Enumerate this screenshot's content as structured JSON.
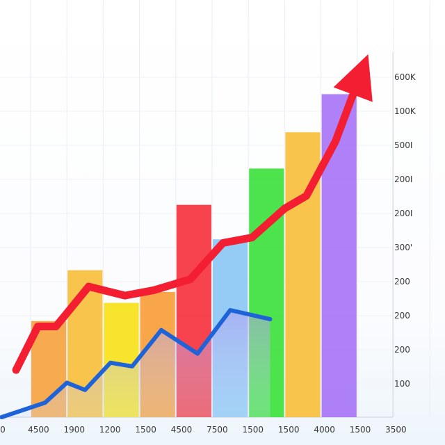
{
  "chart_data": {
    "type": "bar",
    "title": "",
    "xlabel": "",
    "ylabel": "",
    "grid": true,
    "legend": "none",
    "categories": [
      "4500",
      "1900",
      "1200",
      "1500",
      "4500",
      "7500",
      "1500",
      "1500",
      "4000",
      "1500"
    ],
    "bar_colors": [
      "#f7a340",
      "#f9bf3c",
      "#f7e21a",
      "#f79e3a",
      "#f5333f",
      "#8cc8f5",
      "#3ee13e",
      "#f9bf3c",
      "#a875f7",
      "#a875f7"
    ],
    "values": [
      0.265,
      0.405,
      0.315,
      0.345,
      0.585,
      0.49,
      0.685,
      0.785,
      0.89,
      0.0
    ],
    "series": [
      {
        "color": "#f41e33",
        "style": "line-with-arrow",
        "points": [
          [
            -0.4,
            0.13
          ],
          [
            0.2,
            0.25
          ],
          [
            0.7,
            0.25
          ],
          [
            1.6,
            0.36
          ],
          [
            2.6,
            0.335
          ],
          [
            3.4,
            0.35
          ],
          [
            4.4,
            0.38
          ],
          [
            5.3,
            0.48
          ],
          [
            6.1,
            0.495
          ],
          [
            7.0,
            0.575
          ],
          [
            7.6,
            0.61
          ],
          [
            8.4,
            0.76
          ],
          [
            9.3,
            1.0
          ]
        ]
      },
      {
        "color": "#1f63d9",
        "style": "line-with-area",
        "points": [
          [
            -0.8,
            0.0
          ],
          [
            0.4,
            0.04
          ],
          [
            1.0,
            0.095
          ],
          [
            1.5,
            0.075
          ],
          [
            2.2,
            0.15
          ],
          [
            2.8,
            0.14
          ],
          [
            3.6,
            0.24
          ],
          [
            4.6,
            0.175
          ],
          [
            5.5,
            0.295
          ],
          [
            6.6,
            0.27
          ]
        ]
      }
    ],
    "y_tick_labels": [
      "600K",
      "100K",
      "500I",
      "200I",
      "200I",
      "300'",
      "200",
      "200",
      "200",
      "100"
    ],
    "x_tick_labels": [
      "0",
      "4500",
      "1900",
      "1200",
      "1500",
      "4500",
      "7500",
      "1500",
      "1500",
      "4000",
      "1500",
      "3500"
    ],
    "ylim": [
      0,
      1
    ]
  }
}
